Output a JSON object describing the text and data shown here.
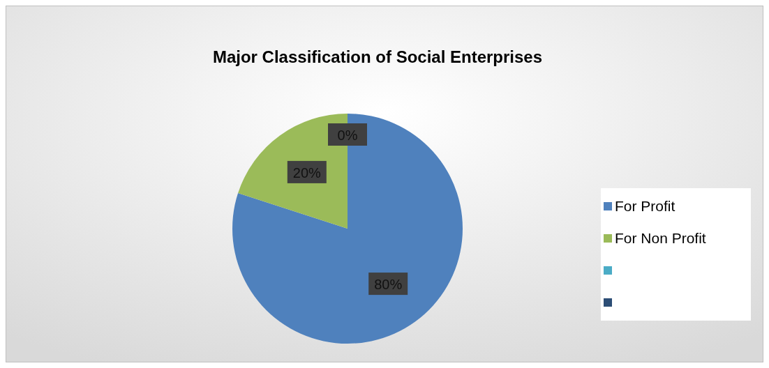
{
  "chart_data": {
    "type": "pie",
    "title": "Major Classification of Social Enterprises",
    "categories": [
      "For Profit",
      "For Non Profit",
      null,
      null
    ],
    "values": [
      80,
      20,
      0,
      0
    ],
    "colors": [
      "#4f81bd",
      "#9bbb59",
      "#4bacc6",
      "#2c4d75"
    ],
    "value_labels": [
      "80%",
      "20%",
      "0%",
      null
    ],
    "legend": "right"
  }
}
